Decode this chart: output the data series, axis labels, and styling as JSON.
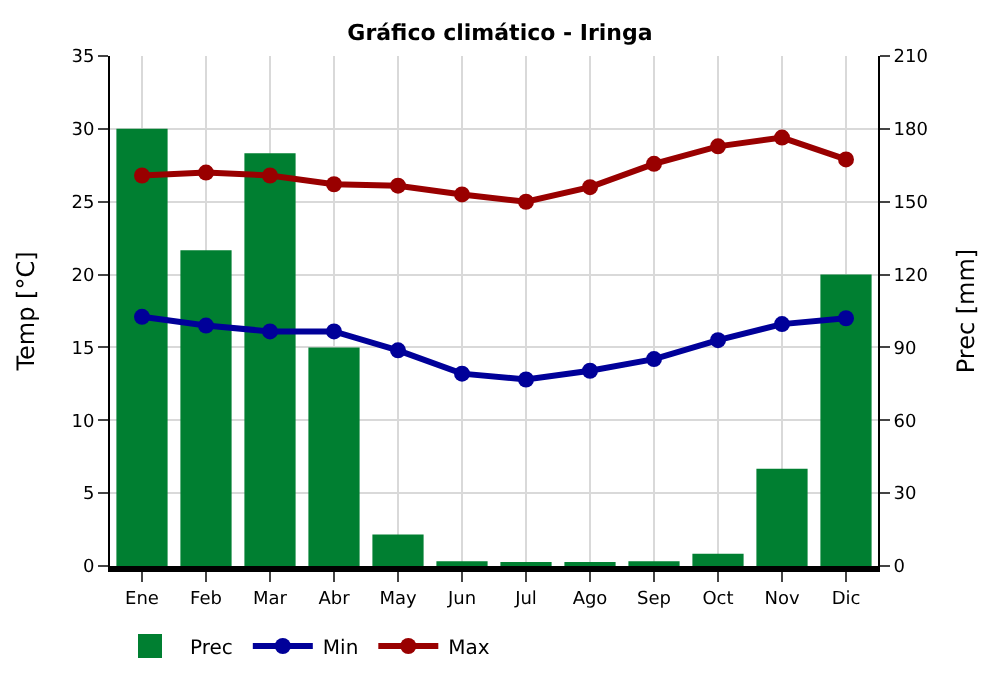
{
  "chart_data": {
    "type": "bar",
    "title": "Gráfico climático - Iringa",
    "ylabel": "Temp [°C]",
    "y2label": "Prec [mm]",
    "categories": [
      "Ene",
      "Feb",
      "Mar",
      "Abr",
      "May",
      "Jun",
      "Jul",
      "Ago",
      "Sep",
      "Oct",
      "Nov",
      "Dic"
    ],
    "series": [
      {
        "name": "Prec",
        "axis": "y2",
        "color": "#007f31",
        "values": [
          180,
          130,
          170,
          90,
          13,
          2,
          1,
          1,
          2,
          5,
          40,
          120
        ]
      },
      {
        "name": "Min",
        "type": "line",
        "color": "#000099",
        "values": [
          17.1,
          16.5,
          16.1,
          16.1,
          14.8,
          13.2,
          12.8,
          13.4,
          14.2,
          15.5,
          16.6,
          17.0
        ]
      },
      {
        "name": "Max",
        "type": "line",
        "color": "#990000",
        "values": [
          26.8,
          27.0,
          26.8,
          26.2,
          26.1,
          25.5,
          25.0,
          26.0,
          27.6,
          28.8,
          29.4,
          27.9
        ]
      }
    ],
    "ylim": [
      0,
      35
    ],
    "yticks": [
      0,
      5,
      10,
      15,
      20,
      25,
      30,
      35
    ],
    "y2lim": [
      0,
      210
    ],
    "y2ticks": [
      0,
      30,
      60,
      90,
      120,
      150,
      180,
      210
    ],
    "grid": true,
    "legend": "bottom",
    "marker": "circle",
    "line_style": "solid"
  }
}
